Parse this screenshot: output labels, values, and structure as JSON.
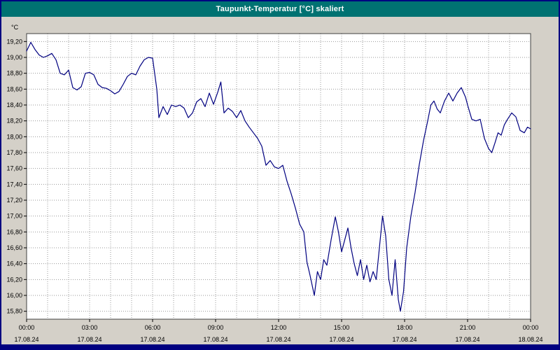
{
  "window": {
    "title": "Taupunkt-Temperatur [°C] skaliert",
    "titlebar_color": "#007272",
    "frame_color": "#000080",
    "background_color": "#d4d0c8"
  },
  "chart_data": {
    "type": "line",
    "title": "Taupunkt-Temperatur [°C] skaliert",
    "ylabel": "°C",
    "unit_label": "°C",
    "line_color": "#000080",
    "plot_bg": "#ffffff",
    "plot_border_color": "#404040",
    "grid": true,
    "grid_color": "#9a9a9a",
    "legend_position": "none",
    "xlim": [
      0,
      24
    ],
    "ylim": [
      15.7,
      19.3
    ],
    "x_grid_step_hours": 1,
    "x_ticks": [
      {
        "t": 0,
        "time": "00:00",
        "date": "17.08.24"
      },
      {
        "t": 3,
        "time": "03:00",
        "date": "17.08.24"
      },
      {
        "t": 6,
        "time": "06:00",
        "date": "17.08.24"
      },
      {
        "t": 9,
        "time": "09:00",
        "date": "17.08.24"
      },
      {
        "t": 12,
        "time": "12:00",
        "date": "17.08.24"
      },
      {
        "t": 15,
        "time": "15:00",
        "date": "17.08.24"
      },
      {
        "t": 18,
        "time": "18:00",
        "date": "17.08.24"
      },
      {
        "t": 21,
        "time": "21:00",
        "date": "17.08.24"
      },
      {
        "t": 24,
        "time": "00:00",
        "date": "18.08.24"
      }
    ],
    "y_ticks": [
      {
        "v": 19.2,
        "label": "19,20"
      },
      {
        "v": 19.0,
        "label": "19,00"
      },
      {
        "v": 18.8,
        "label": "18,80"
      },
      {
        "v": 18.6,
        "label": "18,60"
      },
      {
        "v": 18.4,
        "label": "18,40"
      },
      {
        "v": 18.2,
        "label": "18,20"
      },
      {
        "v": 18.0,
        "label": "18,00"
      },
      {
        "v": 17.8,
        "label": "17,80"
      },
      {
        "v": 17.6,
        "label": "17,60"
      },
      {
        "v": 17.4,
        "label": "17,40"
      },
      {
        "v": 17.2,
        "label": "17,20"
      },
      {
        "v": 17.0,
        "label": "17,00"
      },
      {
        "v": 16.8,
        "label": "16,80"
      },
      {
        "v": 16.6,
        "label": "16,60"
      },
      {
        "v": 16.4,
        "label": "16,40"
      },
      {
        "v": 16.2,
        "label": "16,20"
      },
      {
        "v": 16.0,
        "label": "16,00"
      },
      {
        "v": 15.8,
        "label": "15,80"
      }
    ],
    "series": [
      {
        "name": "Taupunkt-Temperatur",
        "points": [
          [
            0.0,
            19.08
          ],
          [
            0.2,
            19.19
          ],
          [
            0.4,
            19.1
          ],
          [
            0.6,
            19.03
          ],
          [
            0.8,
            19.0
          ],
          [
            1.0,
            19.02
          ],
          [
            1.2,
            19.05
          ],
          [
            1.4,
            18.97
          ],
          [
            1.6,
            18.8
          ],
          [
            1.8,
            18.78
          ],
          [
            2.0,
            18.84
          ],
          [
            2.2,
            18.62
          ],
          [
            2.4,
            18.59
          ],
          [
            2.6,
            18.63
          ],
          [
            2.8,
            18.8
          ],
          [
            3.0,
            18.81
          ],
          [
            3.2,
            18.78
          ],
          [
            3.4,
            18.66
          ],
          [
            3.6,
            18.62
          ],
          [
            3.8,
            18.61
          ],
          [
            4.0,
            18.58
          ],
          [
            4.2,
            18.54
          ],
          [
            4.4,
            18.57
          ],
          [
            4.6,
            18.66
          ],
          [
            4.8,
            18.76
          ],
          [
            5.0,
            18.8
          ],
          [
            5.2,
            18.78
          ],
          [
            5.4,
            18.89
          ],
          [
            5.6,
            18.97
          ],
          [
            5.8,
            19.0
          ],
          [
            6.0,
            18.99
          ],
          [
            6.2,
            18.6
          ],
          [
            6.3,
            18.24
          ],
          [
            6.5,
            18.38
          ],
          [
            6.7,
            18.28
          ],
          [
            6.9,
            18.4
          ],
          [
            7.1,
            18.38
          ],
          [
            7.3,
            18.4
          ],
          [
            7.5,
            18.36
          ],
          [
            7.7,
            18.24
          ],
          [
            7.9,
            18.3
          ],
          [
            8.1,
            18.44
          ],
          [
            8.3,
            18.48
          ],
          [
            8.5,
            18.38
          ],
          [
            8.7,
            18.55
          ],
          [
            8.9,
            18.41
          ],
          [
            9.1,
            18.56
          ],
          [
            9.25,
            18.69
          ],
          [
            9.4,
            18.3
          ],
          [
            9.6,
            18.36
          ],
          [
            9.8,
            18.32
          ],
          [
            10.0,
            18.24
          ],
          [
            10.2,
            18.33
          ],
          [
            10.4,
            18.2
          ],
          [
            10.6,
            18.12
          ],
          [
            10.8,
            18.05
          ],
          [
            11.0,
            17.98
          ],
          [
            11.2,
            17.88
          ],
          [
            11.4,
            17.64
          ],
          [
            11.6,
            17.7
          ],
          [
            11.8,
            17.62
          ],
          [
            12.0,
            17.6
          ],
          [
            12.2,
            17.64
          ],
          [
            12.4,
            17.44
          ],
          [
            12.6,
            17.28
          ],
          [
            12.8,
            17.1
          ],
          [
            13.0,
            16.9
          ],
          [
            13.2,
            16.8
          ],
          [
            13.35,
            16.42
          ],
          [
            13.5,
            16.25
          ],
          [
            13.7,
            16.0
          ],
          [
            13.85,
            16.3
          ],
          [
            14.0,
            16.2
          ],
          [
            14.15,
            16.45
          ],
          [
            14.3,
            16.38
          ],
          [
            14.5,
            16.7
          ],
          [
            14.7,
            16.99
          ],
          [
            14.85,
            16.8
          ],
          [
            15.0,
            16.55
          ],
          [
            15.15,
            16.7
          ],
          [
            15.3,
            16.85
          ],
          [
            15.45,
            16.6
          ],
          [
            15.6,
            16.4
          ],
          [
            15.75,
            16.25
          ],
          [
            15.9,
            16.45
          ],
          [
            16.05,
            16.2
          ],
          [
            16.2,
            16.38
          ],
          [
            16.35,
            16.17
          ],
          [
            16.5,
            16.3
          ],
          [
            16.65,
            16.2
          ],
          [
            16.8,
            16.6
          ],
          [
            16.95,
            17.0
          ],
          [
            17.1,
            16.75
          ],
          [
            17.25,
            16.2
          ],
          [
            17.4,
            16.0
          ],
          [
            17.55,
            16.45
          ],
          [
            17.7,
            15.95
          ],
          [
            17.8,
            15.8
          ],
          [
            17.95,
            16.05
          ],
          [
            18.1,
            16.6
          ],
          [
            18.3,
            17.0
          ],
          [
            18.5,
            17.3
          ],
          [
            18.7,
            17.65
          ],
          [
            18.9,
            17.95
          ],
          [
            19.1,
            18.2
          ],
          [
            19.25,
            18.4
          ],
          [
            19.4,
            18.45
          ],
          [
            19.55,
            18.35
          ],
          [
            19.7,
            18.3
          ],
          [
            19.9,
            18.45
          ],
          [
            20.1,
            18.55
          ],
          [
            20.3,
            18.45
          ],
          [
            20.5,
            18.55
          ],
          [
            20.7,
            18.62
          ],
          [
            20.9,
            18.5
          ],
          [
            21.0,
            18.4
          ],
          [
            21.2,
            18.22
          ],
          [
            21.4,
            18.2
          ],
          [
            21.6,
            18.22
          ],
          [
            21.8,
            17.98
          ],
          [
            22.0,
            17.85
          ],
          [
            22.15,
            17.8
          ],
          [
            22.3,
            17.92
          ],
          [
            22.45,
            18.05
          ],
          [
            22.6,
            18.02
          ],
          [
            22.75,
            18.15
          ],
          [
            22.9,
            18.22
          ],
          [
            23.1,
            18.3
          ],
          [
            23.3,
            18.25
          ],
          [
            23.5,
            18.08
          ],
          [
            23.7,
            18.05
          ],
          [
            23.85,
            18.12
          ],
          [
            24.0,
            18.1
          ]
        ]
      }
    ]
  }
}
